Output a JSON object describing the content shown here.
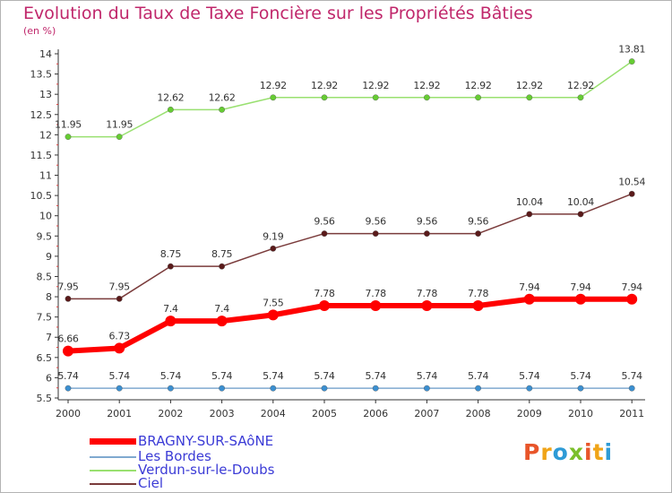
{
  "header": {
    "title": "Evolution du Taux de Taxe Foncière sur les Propriétés Bâties",
    "unit": "(en %)"
  },
  "logo": {
    "text": "Proxiti",
    "colors": [
      "#e8552a",
      "#f0a418",
      "#2e9bd6",
      "#7bbf2a",
      "#e8552a",
      "#f0a418",
      "#2e9bd6"
    ]
  },
  "chart_data": {
    "type": "line",
    "x": [
      "2000",
      "2001",
      "2002",
      "2003",
      "2004",
      "2005",
      "2006",
      "2007",
      "2008",
      "2009",
      "2010",
      "2011"
    ],
    "ylim": [
      5.5,
      14
    ],
    "yticks": [
      "5.5",
      "6",
      "6.5",
      "7",
      "7.5",
      "8",
      "8.5",
      "9",
      "9.5",
      "10",
      "10.5",
      "11",
      "11.5",
      "12",
      "12.5",
      "13",
      "13.5",
      "14"
    ],
    "grid": false,
    "legend_position": "bottom-left",
    "series": [
      {
        "name": "BRAGNY-SUR-SAôNE",
        "color": "#ff0000",
        "marker": "#ff0000",
        "width": 6,
        "values": [
          6.66,
          6.73,
          7.4,
          7.4,
          7.55,
          7.78,
          7.78,
          7.78,
          7.78,
          7.94,
          7.94,
          7.94
        ],
        "labels": [
          "6.66",
          "6.73",
          "7.4",
          "7.4",
          "7.55",
          "7.78",
          "7.78",
          "7.78",
          "7.78",
          "7.94",
          "7.94",
          "7.94"
        ]
      },
      {
        "name": "Les Bordes",
        "color": "#7fa9cf",
        "marker": "#3b8fd0",
        "width": 1.5,
        "values": [
          5.74,
          5.74,
          5.74,
          5.74,
          5.74,
          5.74,
          5.74,
          5.74,
          5.74,
          5.74,
          5.74,
          5.74
        ],
        "labels": [
          "5.74",
          "5.74",
          "5.74",
          "5.74",
          "5.74",
          "5.74",
          "5.74",
          "5.74",
          "5.74",
          "5.74",
          "5.74",
          "5.74"
        ]
      },
      {
        "name": "Verdun-sur-le-Doubs",
        "color": "#99e070",
        "marker": "#66cc33",
        "width": 1.5,
        "values": [
          11.95,
          11.95,
          12.62,
          12.62,
          12.92,
          12.92,
          12.92,
          12.92,
          12.92,
          12.92,
          12.92,
          13.81
        ],
        "labels": [
          "11.95",
          "11.95",
          "12.62",
          "12.62",
          "12.92",
          "12.92",
          "12.92",
          "12.92",
          "12.92",
          "12.92",
          "12.92",
          "13.81"
        ]
      },
      {
        "name": "Ciel",
        "color": "#7a3b3b",
        "marker": "#5a1a1a",
        "width": 1.5,
        "values": [
          7.95,
          7.95,
          8.75,
          8.75,
          9.19,
          9.56,
          9.56,
          9.56,
          9.56,
          10.04,
          10.04,
          10.54
        ],
        "labels": [
          "7.95",
          "7.95",
          "8.75",
          "8.75",
          "9.19",
          "9.56",
          "9.56",
          "9.56",
          "9.56",
          "10.04",
          "10.04",
          "10.54"
        ]
      }
    ]
  }
}
